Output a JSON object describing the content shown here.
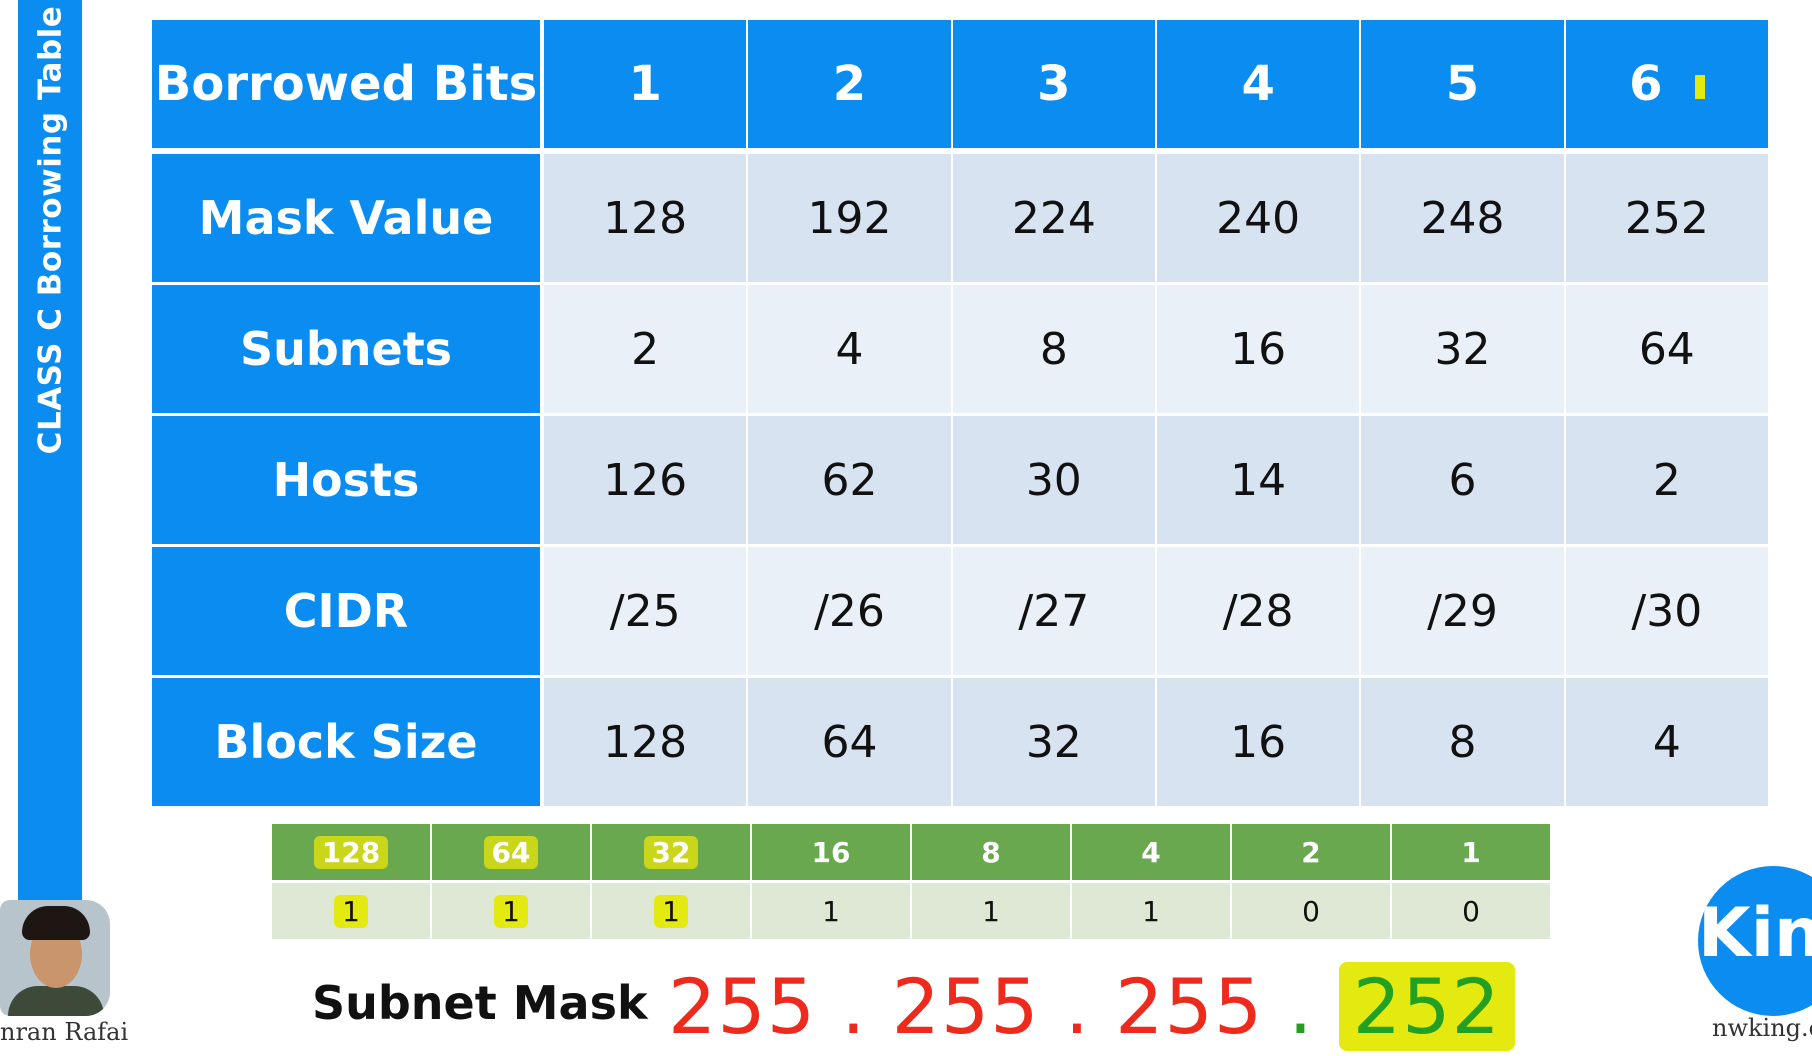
{
  "banner": {
    "title": "CLASS C Borrowing Table"
  },
  "main_table": {
    "header": {
      "label": "Borrowed Bits",
      "values": [
        "1",
        "2",
        "3",
        "4",
        "5",
        "6"
      ]
    },
    "rows": [
      {
        "label": "Mask Value",
        "values": [
          "128",
          "192",
          "224",
          "240",
          "248",
          "252"
        ]
      },
      {
        "label": "Subnets",
        "values": [
          "2",
          "4",
          "8",
          "16",
          "32",
          "64"
        ]
      },
      {
        "label": "Hosts",
        "values": [
          "126",
          "62",
          "30",
          "14",
          "6",
          "2"
        ]
      },
      {
        "label": "CIDR",
        "values": [
          "/25",
          "/26",
          "/27",
          "/28",
          "/29",
          "/30"
        ]
      },
      {
        "label": "Block Size",
        "values": [
          "128",
          "64",
          "32",
          "16",
          "8",
          "4"
        ]
      }
    ]
  },
  "binary_table": {
    "weights": [
      "128",
      "64",
      "32",
      "16",
      "8",
      "4",
      "2",
      "1"
    ],
    "bits": [
      "1",
      "1",
      "1",
      "1",
      "1",
      "1",
      "0",
      "0"
    ]
  },
  "subnet_mask": {
    "label": "Subnet Mask",
    "octets": [
      "255",
      "255",
      "255",
      "252"
    ],
    "separator": "."
  },
  "presenter": {
    "name": "nran Rafai"
  },
  "brand": {
    "logo_text": "King",
    "site": "nwking.o"
  },
  "colors": {
    "table_blue": "#0a8cf0",
    "row_dark": "#d7e3f1",
    "row_light": "#eaf0f8",
    "binary_green": "#6aa84f",
    "highlight_yellow": "#e4ea10",
    "mask_red": "#ee2a1c",
    "mask_green": "#22a022"
  },
  "icons": {
    "presenter": "presenter-avatar",
    "brand": "king-logo-icon"
  }
}
